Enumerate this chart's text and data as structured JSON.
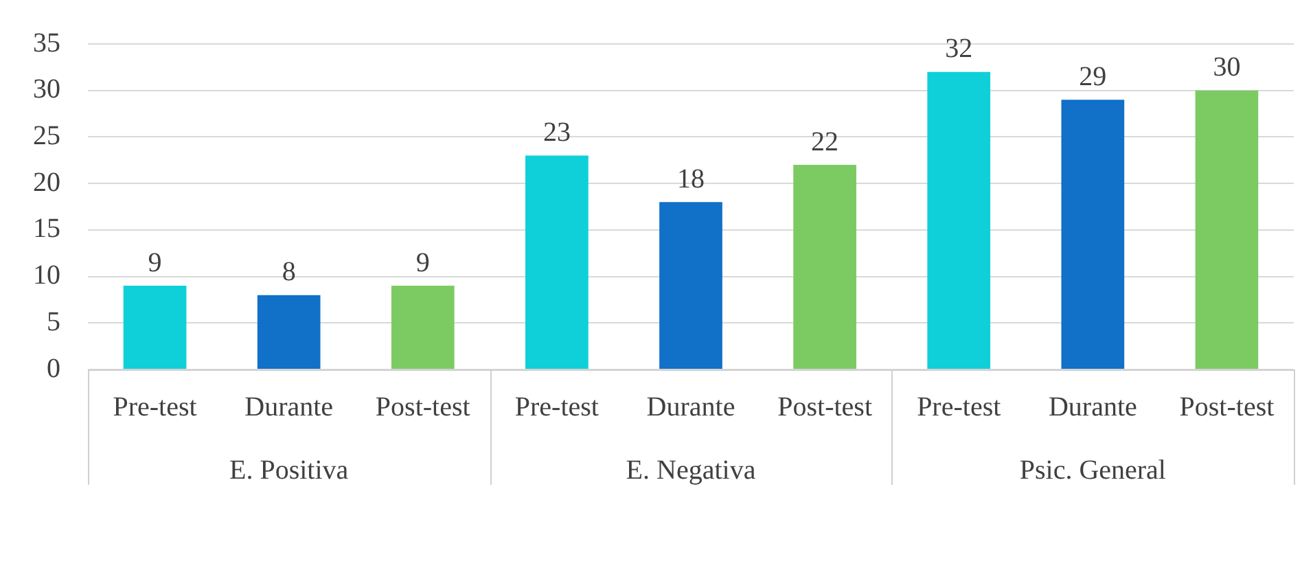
{
  "chart_data": {
    "type": "bar",
    "categories": [
      "E. Positiva",
      "E. Negativa",
      "Psic. General"
    ],
    "series": [
      {
        "name": "Pre-test",
        "color": "#0fd0d8",
        "values": [
          9,
          23,
          32
        ]
      },
      {
        "name": "Durante",
        "color": "#1170c8",
        "values": [
          8,
          18,
          29
        ]
      },
      {
        "name": "Post-test",
        "color": "#7ccb62",
        "values": [
          9,
          22,
          30
        ]
      }
    ],
    "ylim": [
      0,
      35
    ],
    "yticks": [
      0,
      5,
      10,
      15,
      20,
      25,
      30,
      35
    ],
    "grid": "y",
    "data_labels": true,
    "legend": false
  }
}
